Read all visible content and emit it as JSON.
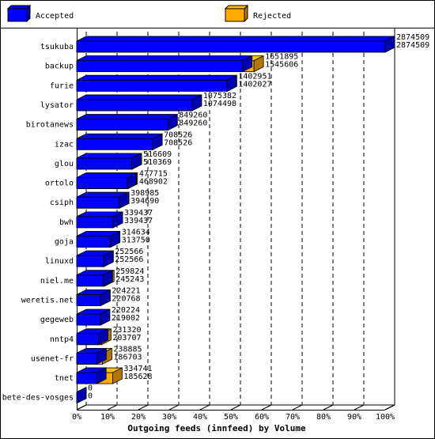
{
  "chart_data": {
    "type": "bar3d",
    "orientation": "horizontal",
    "x_label": "Outgoing feeds (innfeed) by Volume",
    "categories": [
      "tsukuba",
      "backup",
      "furie",
      "lysator",
      "birotanews",
      "izac",
      "glou",
      "ortolo",
      "csiph",
      "bwh",
      "goja",
      "linuxd",
      "niel.me",
      "weretis.net",
      "gegeweb",
      "nntp4",
      "usenet-fr",
      "tnet",
      "bete-des-vosges"
    ],
    "series": [
      {
        "name": "Accepted",
        "color": "#0000ff",
        "values": [
          2874509,
          1545606,
          1402027,
          1074498,
          849260,
          708526,
          510369,
          468902,
          394690,
          339437,
          313750,
          252566,
          245243,
          220768,
          219002,
          203707,
          186703,
          185628,
          0
        ]
      },
      {
        "name": "Rejected",
        "color": "#ffaa00",
        "values": [
          2874509,
          1651895,
          1402951,
          1075382,
          849260,
          708526,
          516609,
          477715,
          398985,
          339437,
          314634,
          252566,
          259824,
          224221,
          220224,
          231320,
          238885,
          334741,
          0
        ]
      }
    ],
    "xlim": [
      0,
      2874509
    ],
    "xticks": [
      {
        "value": 0,
        "label": "0%"
      },
      {
        "value": 287450.9,
        "label": "10%"
      },
      {
        "value": 574901.8,
        "label": "20%"
      },
      {
        "value": 862352.7,
        "label": "30%"
      },
      {
        "value": 1149803.6,
        "label": "40%"
      },
      {
        "value": 1437254.5,
        "label": "50%"
      },
      {
        "value": 1724705.4,
        "label": "60%"
      },
      {
        "value": 2012156.3,
        "label": "70%"
      },
      {
        "value": 2299607.2,
        "label": "80%"
      },
      {
        "value": 2587058.1,
        "label": "90%"
      },
      {
        "value": 2874509,
        "label": "100%"
      }
    ],
    "grid": true
  }
}
